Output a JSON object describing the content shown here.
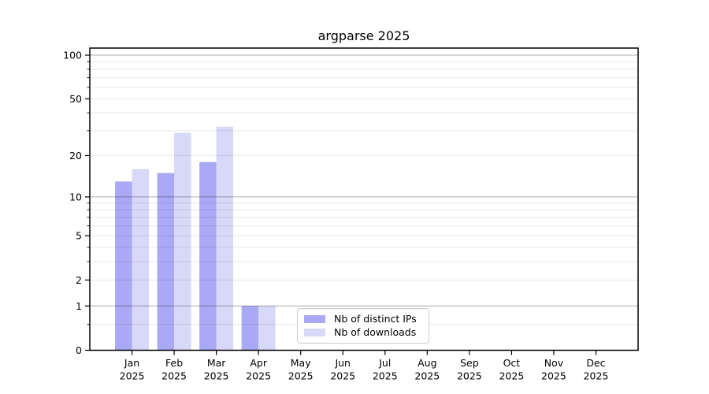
{
  "title": "argparse 2025",
  "chart_data": {
    "type": "bar",
    "title": "argparse 2025",
    "categories": [
      "Jan 2025",
      "Feb 2025",
      "Mar 2025",
      "Apr 2025",
      "May 2025",
      "Jun 2025",
      "Jul 2025",
      "Aug 2025",
      "Sep 2025",
      "Oct 2025",
      "Nov 2025",
      "Dec 2025"
    ],
    "series": [
      {
        "name": "Nb of distinct IPs",
        "color": "#a9a9f5",
        "values": [
          13,
          15,
          18,
          1,
          0,
          0,
          0,
          0,
          0,
          0,
          0,
          0
        ]
      },
      {
        "name": "Nb of downloads",
        "color": "#d8d8f8",
        "values": [
          16,
          29,
          32,
          1,
          0,
          0,
          0,
          0,
          0,
          0,
          0,
          0
        ]
      }
    ],
    "yscale": "log1p",
    "ylim": [
      0,
      100
    ],
    "yticks": [
      0,
      1,
      2,
      5,
      10,
      20,
      50,
      100
    ],
    "major_gridlines": [
      1,
      10,
      100
    ],
    "minor_gridlines": [
      0.5,
      3,
      4,
      6,
      7,
      8,
      9,
      30,
      40,
      60,
      70,
      80,
      90
    ],
    "grid": true,
    "legend_position": "lower center",
    "colors": {
      "axis": "#000000",
      "grid_major": "rgba(0,0,0,0.32)",
      "grid_minor": "rgba(0,0,0,0.09)",
      "legend_border": "#cccccc"
    }
  }
}
